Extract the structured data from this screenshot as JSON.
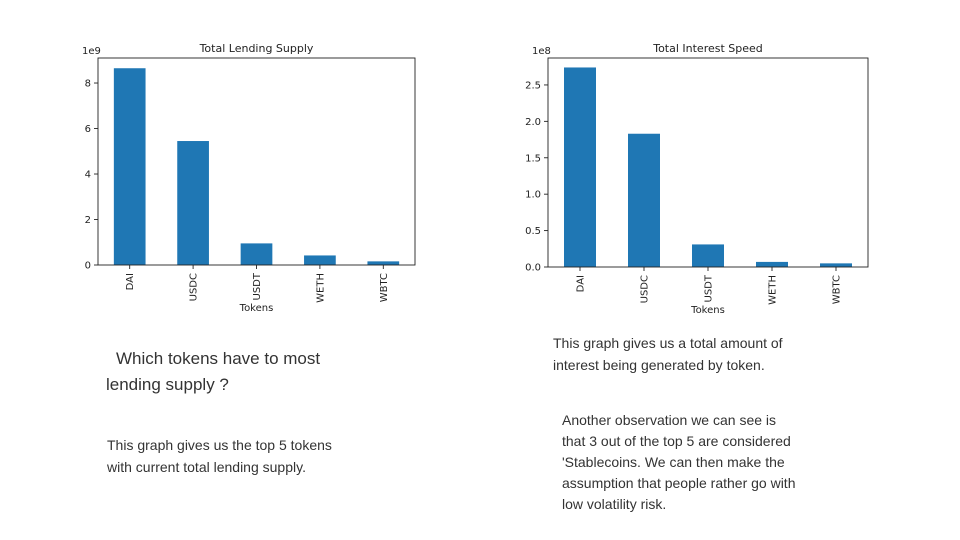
{
  "chart_data": [
    {
      "type": "bar",
      "title": "Total Lending Supply",
      "xlabel": "Tokens",
      "ylabel": "",
      "scale_label": "1e9",
      "categories": [
        "DAI",
        "USDC",
        "USDT",
        "WETH",
        "WBTC"
      ],
      "values": [
        8.65,
        5.45,
        0.95,
        0.42,
        0.16
      ],
      "yticks": [
        0,
        2,
        4,
        6,
        8
      ],
      "ytick_labels": [
        "0",
        "2",
        "4",
        "6",
        "8"
      ],
      "ylim": [
        0,
        9.1
      ],
      "grid": false,
      "color": "#1f77b4"
    },
    {
      "type": "bar",
      "title": "Total Interest Speed",
      "xlabel": "Tokens",
      "ylabel": "",
      "scale_label": "1e8",
      "categories": [
        "DAI",
        "USDC",
        "USDT",
        "WETH",
        "WBTC"
      ],
      "values": [
        2.74,
        1.83,
        0.31,
        0.07,
        0.05
      ],
      "yticks": [
        0,
        0.5,
        1.0,
        1.5,
        2.0,
        2.5
      ],
      "ytick_labels": [
        "0.0",
        "0.5",
        "1.0",
        "1.5",
        "2.0",
        "2.5"
      ],
      "ylim": [
        0,
        2.87
      ],
      "grid": false,
      "color": "#1f77b4"
    }
  ],
  "text": {
    "question": [
      "Which tokens have to most",
      "lending supply ?"
    ],
    "desc1": [
      "This graph gives us the top 5 tokens",
      "with current  total lending supply."
    ],
    "desc2": [
      "This graph gives us a total  amount of",
      "interest being generated by token."
    ],
    "desc3": [
      "Another observation we can see is",
      "that 3 out of the top 5 are considered",
      "'Stablecoins. We can then make the",
      "assumption that people rather go with",
      "low volatility risk."
    ]
  }
}
